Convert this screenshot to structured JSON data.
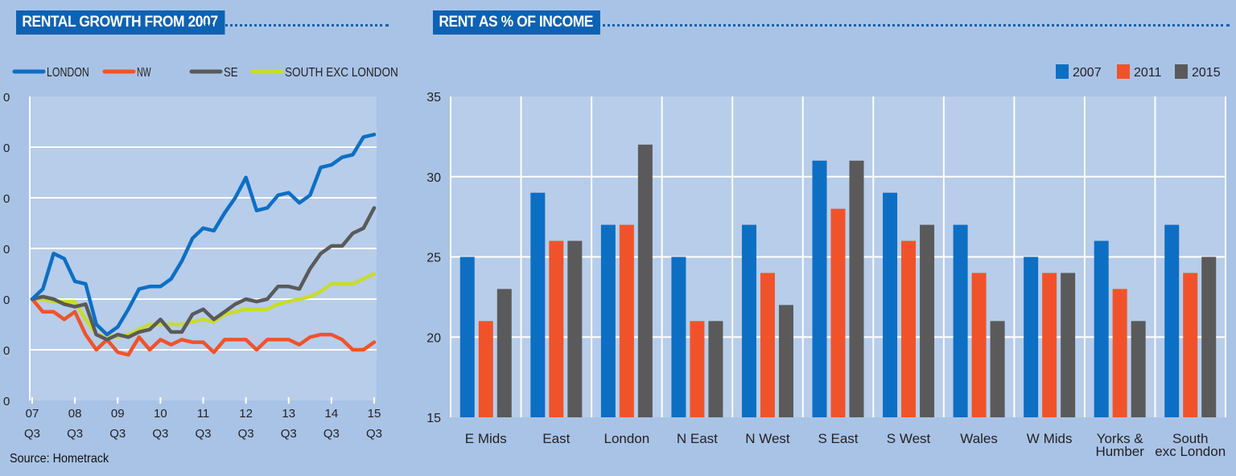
{
  "left_title": "RENTAL GROWTH FROM 2007",
  "right_title": "RENT AS % OF INCOME",
  "source": "Source: Hometrack",
  "colors": {
    "background": "#a9c3e6",
    "plot_bg": "#b7cdea",
    "title_bg": "#0d62b3",
    "london": "#0d6fc3",
    "nw": "#f0532a",
    "se": "#5a5a5a",
    "south_exc_london": "#c8dc2c",
    "y2007": "#0d6fc3",
    "y2011": "#f0532a",
    "y2015": "#5a5a5a"
  },
  "chart_data": [
    {
      "type": "line",
      "title": "RENTAL GROWTH FROM 2007",
      "x_ticks": [
        {
          "year": "07",
          "quarter": "Q3"
        },
        {
          "year": "08",
          "quarter": "Q3"
        },
        {
          "year": "09",
          "quarter": "Q3"
        },
        {
          "year": "10",
          "quarter": "Q3"
        },
        {
          "year": "11",
          "quarter": "Q3"
        },
        {
          "year": "12",
          "quarter": "Q3"
        },
        {
          "year": "13",
          "quarter": "Q3"
        },
        {
          "year": "14",
          "quarter": "Q3"
        },
        {
          "year": "15",
          "quarter": "Q3"
        }
      ],
      "y_tick_labels": [
        "0",
        "0",
        "0",
        "0",
        "0",
        "0",
        "0"
      ],
      "ylim": [
        -20,
        40
      ],
      "legend_position": "top",
      "series": [
        {
          "name": "LONDON",
          "color": "#0d6fc3",
          "values": [
            0,
            2,
            9,
            8,
            3.5,
            3,
            -5,
            -7,
            -5.5,
            -2,
            2,
            2.5,
            2.5,
            4,
            7.5,
            12,
            14,
            13.5,
            17,
            20,
            24,
            17.5,
            18,
            20.5,
            21,
            19,
            20.5,
            26,
            26.5,
            28,
            28.5,
            32,
            32.5
          ]
        },
        {
          "name": "NW",
          "color": "#f0532a",
          "values": [
            0,
            -2.5,
            -2.5,
            -4,
            -2.5,
            -7,
            -10,
            -8,
            -10.5,
            -11,
            -7.5,
            -10,
            -8,
            -9,
            -8,
            -8.5,
            -8.5,
            -10.5,
            -8,
            -8,
            -8,
            -10,
            -8,
            -8,
            -8,
            -9,
            -7.5,
            -7,
            -7,
            -8,
            -10,
            -10,
            -8.5
          ]
        },
        {
          "name": "SE",
          "color": "#5a5a5a",
          "values": [
            0,
            0.5,
            0,
            -1,
            -1.5,
            -1,
            -7,
            -8,
            -7,
            -7.5,
            -6.5,
            -6,
            -4,
            -6.5,
            -6.5,
            -3,
            -2,
            -4,
            -2.5,
            -1,
            0,
            -0.5,
            0,
            2.5,
            2.5,
            2,
            6,
            9,
            10.5,
            10.5,
            13,
            14,
            18
          ]
        },
        {
          "name": "SOUTH EXC LONDON",
          "color": "#c8dc2c",
          "values": [
            0,
            0,
            -0.5,
            -0.5,
            -0.5,
            -4,
            -7,
            -7,
            -7.5,
            -7,
            -6,
            -5,
            -5,
            -5,
            -5,
            -4.5,
            -4,
            -4.5,
            -3,
            -2.5,
            -2,
            -2,
            -2,
            -1,
            -0.5,
            0,
            0.5,
            1.5,
            3,
            3,
            3,
            4,
            5
          ]
        }
      ]
    },
    {
      "type": "bar",
      "title": "RENT AS % OF INCOME",
      "categories": [
        "E Mids",
        "East",
        "London",
        "N East",
        "N West",
        "S East",
        "S West",
        "Wales",
        "W Mids",
        "Yorks & Humber",
        "South exc London"
      ],
      "category_lines": [
        [
          "E Mids"
        ],
        [
          "East"
        ],
        [
          "London"
        ],
        [
          "N East"
        ],
        [
          "N West"
        ],
        [
          "S East"
        ],
        [
          "S West"
        ],
        [
          "Wales"
        ],
        [
          "W Mids"
        ],
        [
          "Yorks &",
          "Humber"
        ],
        [
          "South",
          "exc London"
        ]
      ],
      "ylim": [
        15,
        35
      ],
      "y_ticks": [
        15,
        20,
        25,
        30,
        35
      ],
      "legend_position": "top-right",
      "series": [
        {
          "name": "2007",
          "color": "#0d6fc3",
          "values": [
            25,
            29,
            27,
            25,
            27,
            31,
            29,
            27,
            25,
            26,
            27
          ]
        },
        {
          "name": "2011",
          "color": "#f0532a",
          "values": [
            21,
            26,
            27,
            21,
            24,
            28,
            26,
            24,
            24,
            23,
            24
          ]
        },
        {
          "name": "2015",
          "color": "#5a5a5a",
          "values": [
            23,
            26,
            32,
            21,
            22,
            31,
            27,
            21,
            24,
            21,
            25
          ]
        }
      ]
    }
  ]
}
